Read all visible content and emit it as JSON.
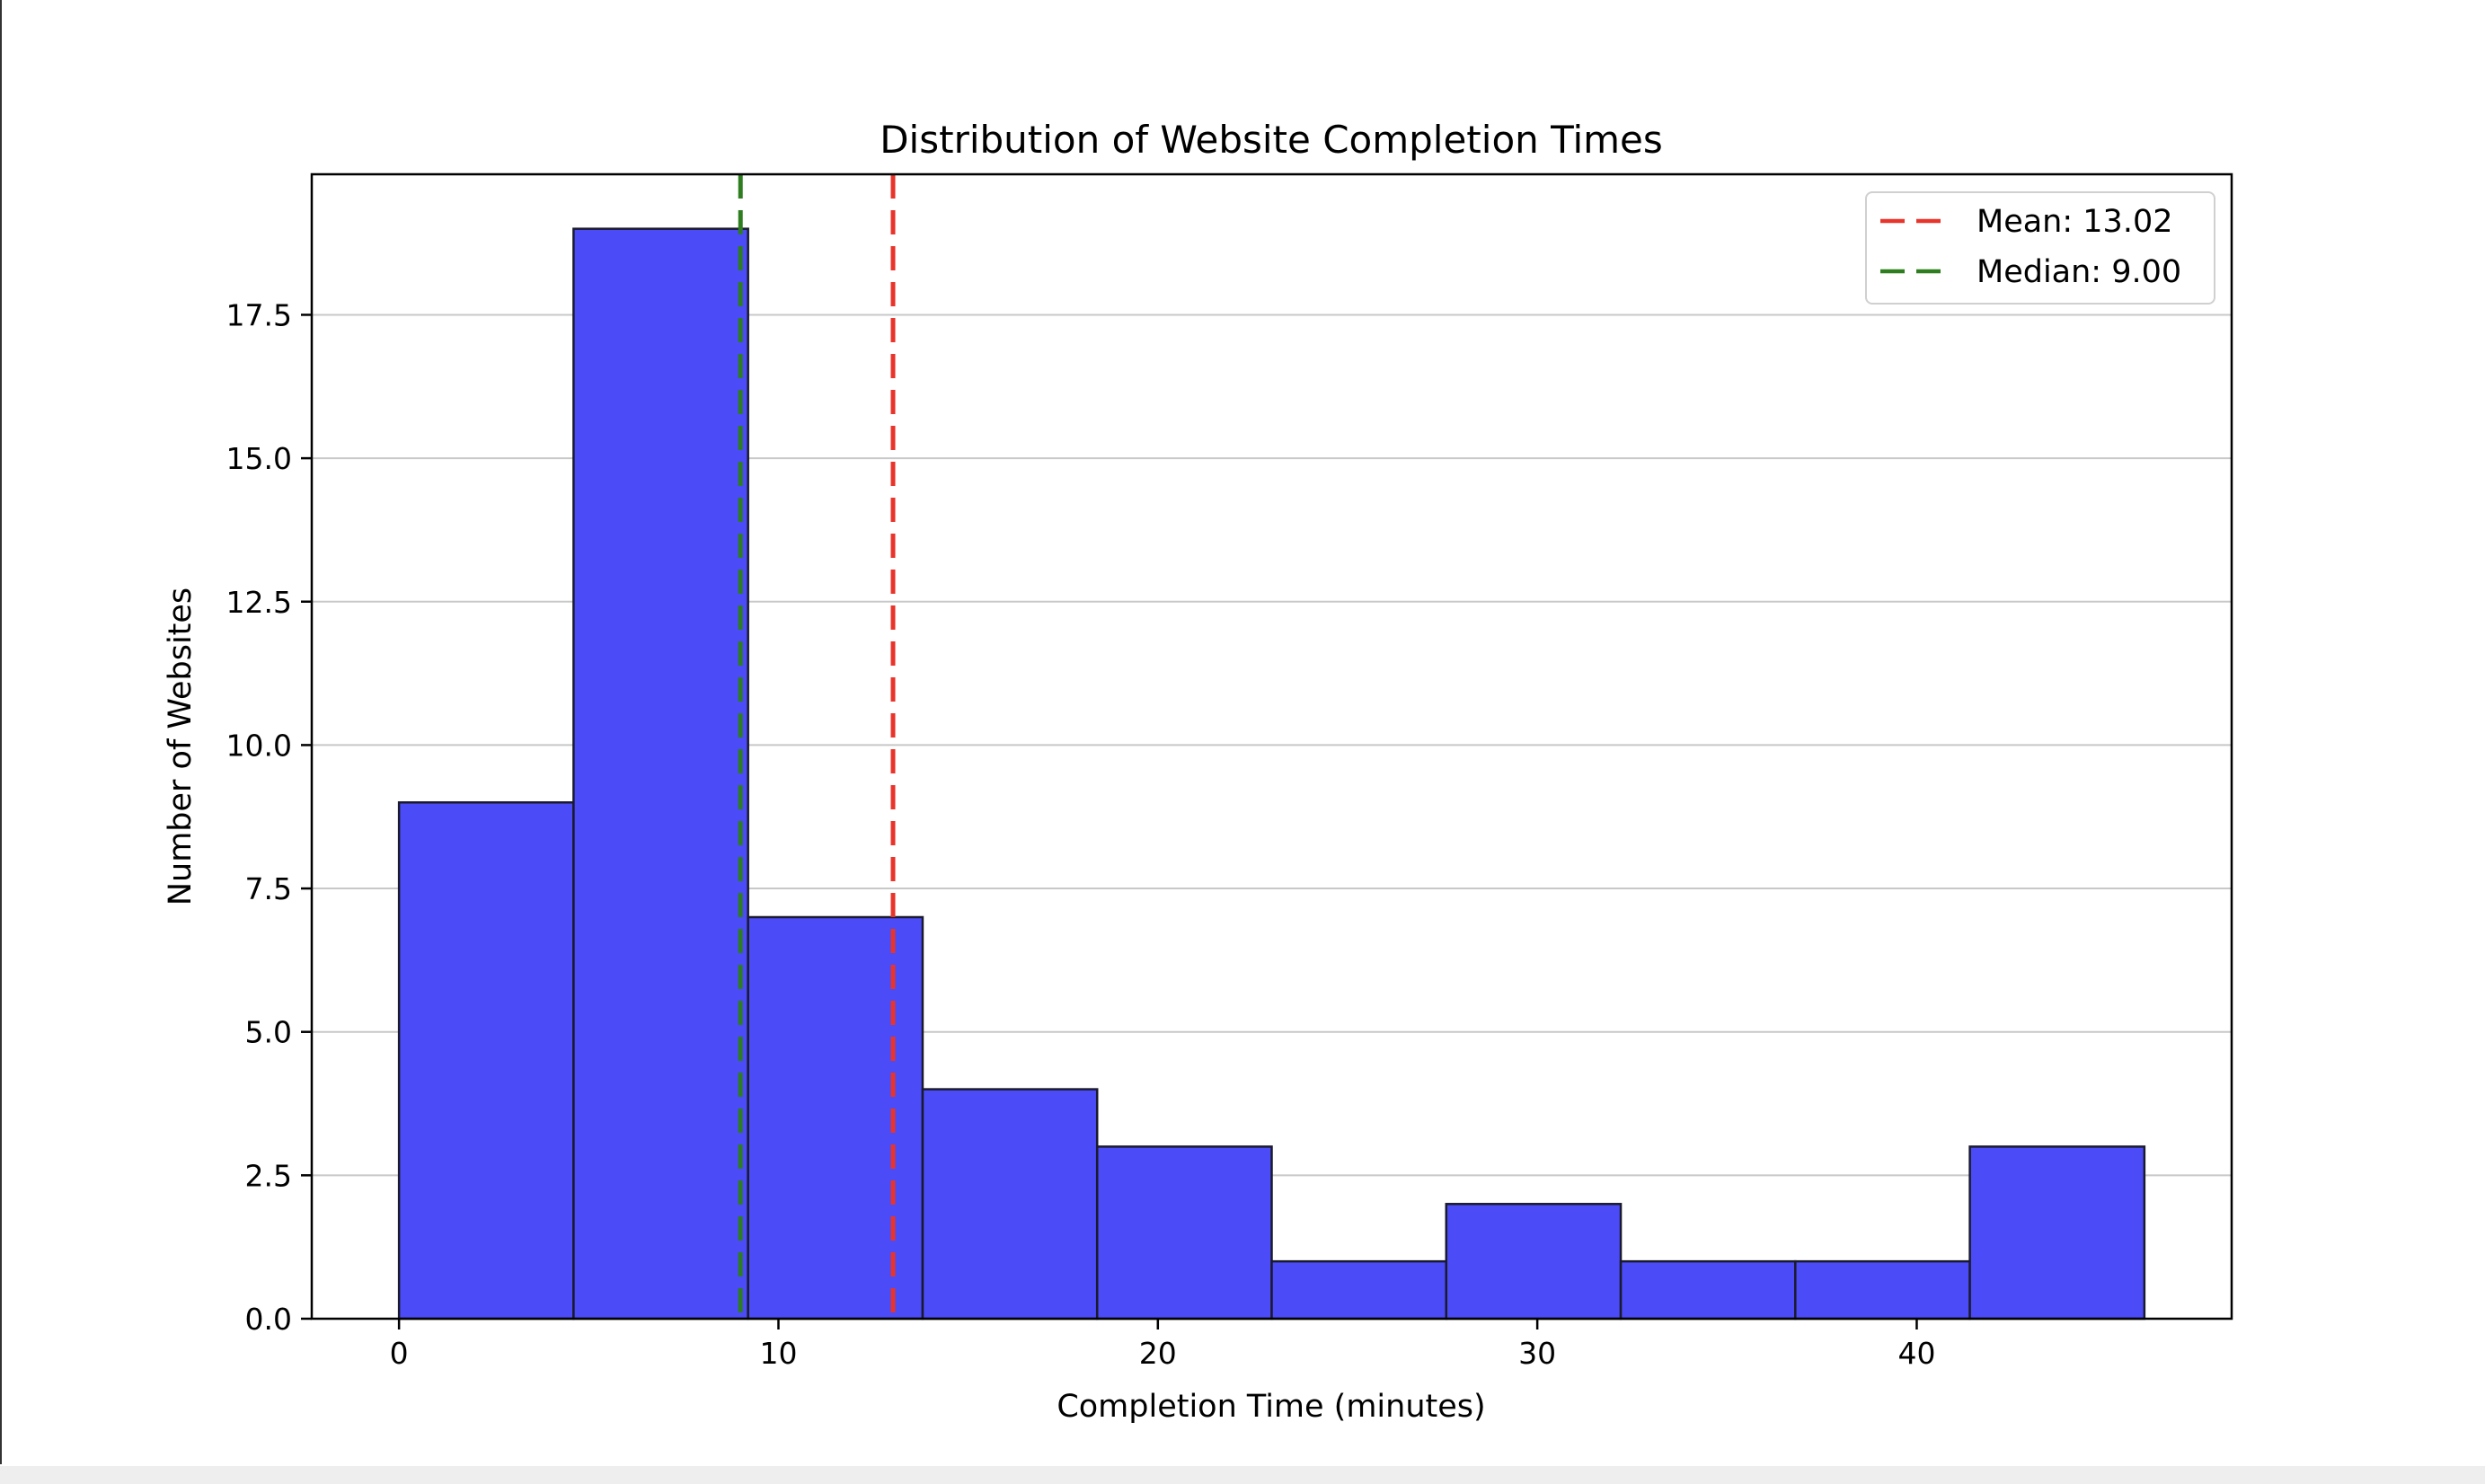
{
  "chart_data": {
    "type": "bar",
    "title": "Distribution of Website Completion Times",
    "xlabel": "Completion Time (minutes)",
    "ylabel": "Number of Websites",
    "bin_edges": [
      0,
      4.6,
      9.2,
      13.8,
      18.4,
      23.0,
      27.6,
      32.2,
      36.8,
      41.4,
      46.0
    ],
    "values": [
      9,
      19,
      7,
      4,
      3,
      1,
      2,
      1,
      1,
      3
    ],
    "xlim": [
      -2.3,
      48.3
    ],
    "ylim": [
      0,
      19.95
    ],
    "xticks": [
      0,
      10,
      20,
      30,
      40
    ],
    "xtick_labels": [
      "0",
      "10",
      "20",
      "30",
      "40"
    ],
    "yticks": [
      0,
      2.5,
      5,
      7.5,
      10,
      12.5,
      15,
      17.5
    ],
    "ytick_labels": [
      "0.0",
      "2.5",
      "5.0",
      "7.5",
      "10.0",
      "12.5",
      "15.0",
      "17.5"
    ],
    "grid": "y",
    "bar_color": "#4b4bf7",
    "edge_color": "#1a1a2e",
    "reference_lines": [
      {
        "name": "Mean: 13.02",
        "x": 13.02,
        "color": "#e8342a",
        "style": "dashed"
      },
      {
        "name": "Median: 9.00",
        "x": 9.0,
        "color": "#2e7d1f",
        "style": "dashed"
      }
    ],
    "legend_placement": "top-right"
  }
}
